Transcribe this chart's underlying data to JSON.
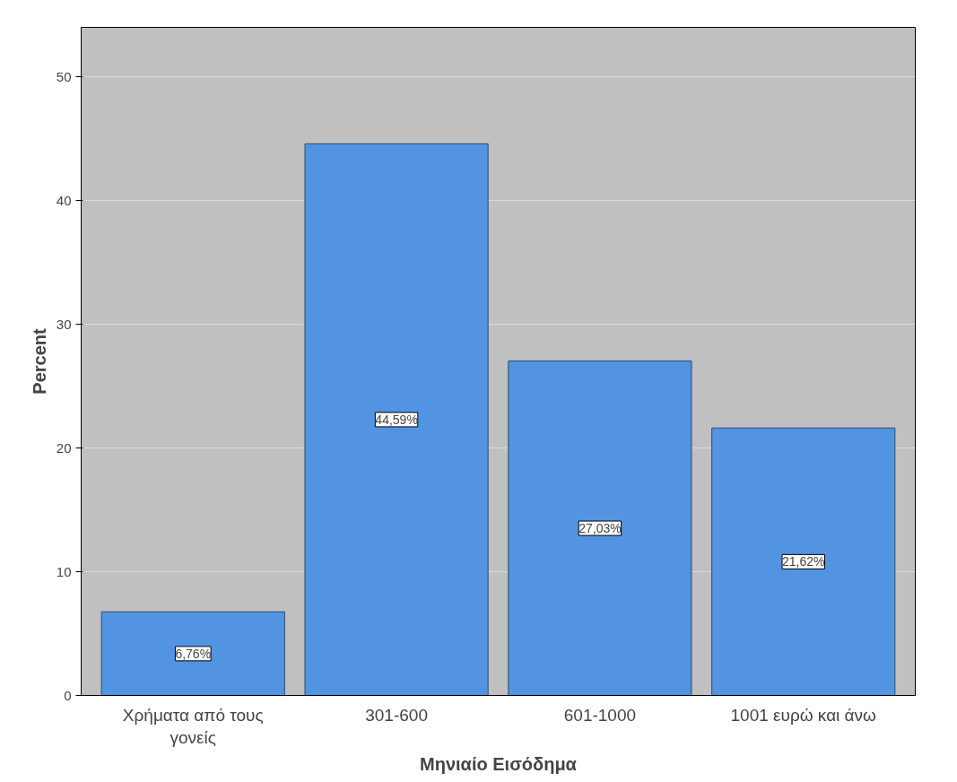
{
  "chart_data": {
    "type": "bar",
    "xlabel": "Μηνιαίο Εισόδημα",
    "ylabel": "Percent",
    "categories": [
      "Χρήματα από τους γονείς",
      "301-600",
      "601-1000",
      "1001 ευρώ και άνω"
    ],
    "values": [
      6.76,
      44.59,
      27.03,
      21.62
    ],
    "value_labels": [
      "6,76%",
      "44,59%",
      "27,03%",
      "21,62%"
    ],
    "color": "#5294e2",
    "ylim": [
      0,
      54
    ],
    "yticks": [
      0,
      10,
      20,
      30,
      40,
      50
    ],
    "grid": "y"
  }
}
